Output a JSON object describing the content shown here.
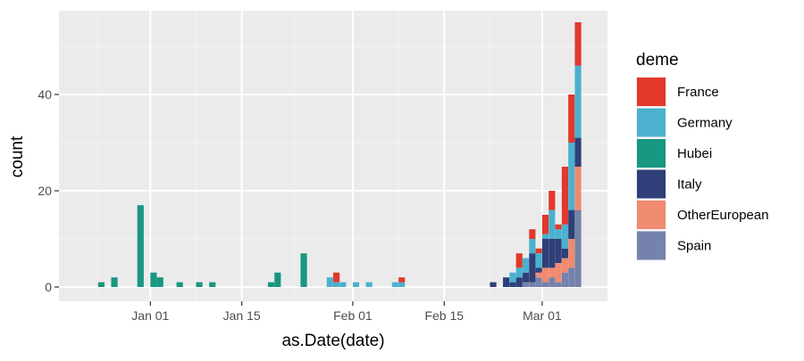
{
  "chart_data": {
    "type": "bar",
    "subtype": "stacked histogram",
    "xlabel": "as.Date(date)",
    "ylabel": "count",
    "x_ticks": [
      "Jan 01",
      "Jan 15",
      "Feb 01",
      "Feb 15",
      "Mar 01"
    ],
    "y_ticks": [
      "0",
      "20",
      "40"
    ],
    "ylim": [
      0,
      57
    ],
    "xlim": [
      "2019-12-18",
      "2020-03-11"
    ],
    "grid": true,
    "legend": {
      "title": "deme",
      "placement": "right",
      "entries": [
        {
          "name": "France",
          "color": "#E2382B"
        },
        {
          "name": "Germany",
          "color": "#4BB1CE"
        },
        {
          "name": "Hubei",
          "color": "#189781"
        },
        {
          "name": "Italy",
          "color": "#2E3F79"
        },
        {
          "name": "OtherEuropean",
          "color": "#F08A70"
        },
        {
          "name": "Spain",
          "color": "#7582AB"
        }
      ]
    },
    "series_order": [
      "Spain",
      "OtherEuropean",
      "Italy",
      "Hubei",
      "Germany",
      "France"
    ],
    "bars": [
      {
        "date": "2019-12-24",
        "Hubei": 1
      },
      {
        "date": "2019-12-26",
        "Hubei": 2
      },
      {
        "date": "2019-12-30",
        "Hubei": 17
      },
      {
        "date": "2020-01-01",
        "Hubei": 3
      },
      {
        "date": "2020-01-02",
        "Hubei": 2
      },
      {
        "date": "2020-01-05",
        "Hubei": 1
      },
      {
        "date": "2020-01-08",
        "Hubei": 1
      },
      {
        "date": "2020-01-10",
        "Hubei": 1
      },
      {
        "date": "2020-01-19",
        "Hubei": 1
      },
      {
        "date": "2020-01-20",
        "Hubei": 3
      },
      {
        "date": "2020-01-24",
        "Hubei": 7
      },
      {
        "date": "2020-01-28",
        "Germany": 2
      },
      {
        "date": "2020-01-29",
        "Germany": 1,
        "France": 2
      },
      {
        "date": "2020-01-30",
        "Germany": 1
      },
      {
        "date": "2020-02-01",
        "Germany": 1
      },
      {
        "date": "2020-02-03",
        "Germany": 1
      },
      {
        "date": "2020-02-07",
        "Germany": 1
      },
      {
        "date": "2020-02-08",
        "Germany": 1,
        "France": 1
      },
      {
        "date": "2020-02-22",
        "Italy": 1
      },
      {
        "date": "2020-02-24",
        "Italy": 2
      },
      {
        "date": "2020-02-25",
        "Italy": 1,
        "Germany": 2
      },
      {
        "date": "2020-02-26",
        "Italy": 2,
        "Germany": 2,
        "France": 3
      },
      {
        "date": "2020-02-27",
        "Spain": 1,
        "Italy": 2,
        "Germany": 3
      },
      {
        "date": "2020-02-28",
        "Spain": 1,
        "Italy": 6,
        "Germany": 3,
        "France": 2
      },
      {
        "date": "2020-02-29",
        "Spain": 2,
        "OtherEuropean": 1,
        "Italy": 1,
        "Germany": 3,
        "France": 1
      },
      {
        "date": "2020-03-01",
        "Spain": 1,
        "OtherEuropean": 3,
        "Italy": 6,
        "Germany": 1,
        "France": 4
      },
      {
        "date": "2020-03-02",
        "Spain": 2,
        "OtherEuropean": 2,
        "Italy": 6,
        "Germany": 6,
        "France": 4
      },
      {
        "date": "2020-03-03",
        "Spain": 1,
        "OtherEuropean": 4,
        "Italy": 5,
        "Germany": 2,
        "France": 1
      },
      {
        "date": "2020-03-04",
        "Spain": 3,
        "OtherEuropean": 3,
        "Italy": 2,
        "Germany": 5,
        "France": 12
      },
      {
        "date": "2020-03-05",
        "Spain": 4,
        "OtherEuropean": 6,
        "Italy": 6,
        "Germany": 14,
        "France": 10
      },
      {
        "date": "2020-03-06",
        "Spain": 16,
        "OtherEuropean": 9,
        "Italy": 6,
        "Germany": 15,
        "France": 9
      }
    ]
  }
}
